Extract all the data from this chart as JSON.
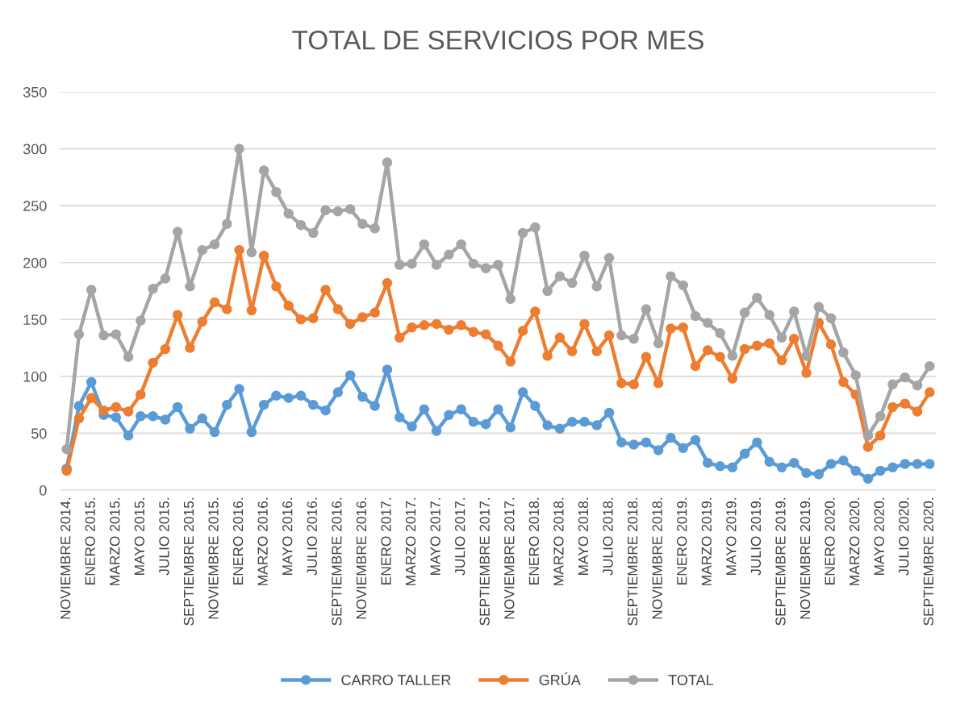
{
  "chart_data": {
    "type": "line",
    "title": "TOTAL DE SERVICIOS POR MES",
    "categories": [
      "NOVIEMBRE 2014.",
      null,
      "ENERO 2015.",
      null,
      "MARZO 2015.",
      null,
      "MAYO 2015.",
      null,
      "JULIO 2015.",
      null,
      "SEPTIEMBRE 2015.",
      null,
      "NOVIEMBRE 2015.",
      null,
      "ENERO 2016.",
      null,
      "MARZO 2016.",
      null,
      "MAYO 2016.",
      null,
      "JULIO 2016.",
      null,
      "SEPTIEMBRE 2016.",
      null,
      "NOVIEMBRE 2016.",
      null,
      "ENERO 2017.",
      null,
      "MARZO 2017.",
      null,
      "MAYO 2017.",
      null,
      "JULIO 2017.",
      null,
      "SEPTIEMBRE 2017.",
      null,
      "NOVIEMBRE 2017.",
      null,
      "ENERO 2018.",
      null,
      "MARZO 2018.",
      null,
      "MAYO 2018.",
      null,
      "JULIO 2018.",
      null,
      "SEPTIEMBRE 2018.",
      null,
      "NOVIEMBRE 2018.",
      null,
      "ENERO 2019.",
      null,
      "MARZO 2019.",
      null,
      "MAYO 2019.",
      null,
      "JULIO 2019.",
      null,
      "SEPTIEMBRE 2019.",
      null,
      "NOVIEMBRE 2019.",
      null,
      "ENERO 2020.",
      null,
      "MARZO 2020.",
      null,
      "MAYO 2020.",
      null,
      "JULIO 2020.",
      null,
      "SEPTIEMBRE 2020."
    ],
    "series": [
      {
        "name": "CARRO TALLER",
        "color": "#5b9bd5",
        "values": [
          19,
          74,
          95,
          66,
          64,
          48,
          65,
          65,
          62,
          73,
          54,
          63,
          51,
          75,
          89,
          51,
          75,
          83,
          81,
          83,
          75,
          70,
          86,
          101,
          82,
          74,
          106,
          64,
          56,
          71,
          52,
          66,
          71,
          60,
          58,
          71,
          55,
          86,
          74,
          57,
          54,
          60,
          60,
          57,
          68,
          42,
          40,
          42,
          35,
          46,
          37,
          44,
          24,
          21,
          20,
          32,
          42,
          25,
          20,
          24,
          15,
          14,
          23,
          26,
          17,
          10,
          17,
          20,
          23,
          23,
          23
        ]
      },
      {
        "name": "GRÚA",
        "color": "#ed7d31",
        "values": [
          17,
          63,
          81,
          70,
          73,
          69,
          84,
          112,
          124,
          154,
          125,
          148,
          165,
          159,
          211,
          158,
          206,
          179,
          162,
          150,
          151,
          176,
          159,
          146,
          152,
          156,
          182,
          134,
          143,
          145,
          146,
          141,
          145,
          139,
          137,
          127,
          113,
          140,
          157,
          118,
          134,
          122,
          146,
          122,
          136,
          94,
          93,
          117,
          94,
          142,
          143,
          109,
          123,
          117,
          98,
          124,
          127,
          129,
          114,
          133,
          103,
          147,
          128,
          95,
          84,
          38,
          48,
          73,
          76,
          69,
          86
        ]
      },
      {
        "name": "TOTAL",
        "color": "#a5a5a5",
        "values": [
          36,
          137,
          176,
          136,
          137,
          117,
          149,
          177,
          186,
          227,
          179,
          211,
          216,
          234,
          300,
          209,
          281,
          262,
          243,
          233,
          226,
          246,
          245,
          247,
          234,
          230,
          288,
          198,
          199,
          216,
          198,
          207,
          216,
          199,
          195,
          198,
          168,
          226,
          231,
          175,
          188,
          182,
          206,
          179,
          204,
          136,
          133,
          159,
          129,
          188,
          180,
          153,
          147,
          138,
          118,
          156,
          169,
          154,
          134,
          157,
          118,
          161,
          151,
          121,
          101,
          48,
          65,
          93,
          99,
          92,
          109
        ]
      }
    ],
    "ylim": [
      0,
      350
    ],
    "yticks": [
      0,
      50,
      100,
      150,
      200,
      250,
      300,
      350
    ],
    "grid": "y",
    "legend": "bottom",
    "marker": "circle",
    "line_style": "solid"
  }
}
